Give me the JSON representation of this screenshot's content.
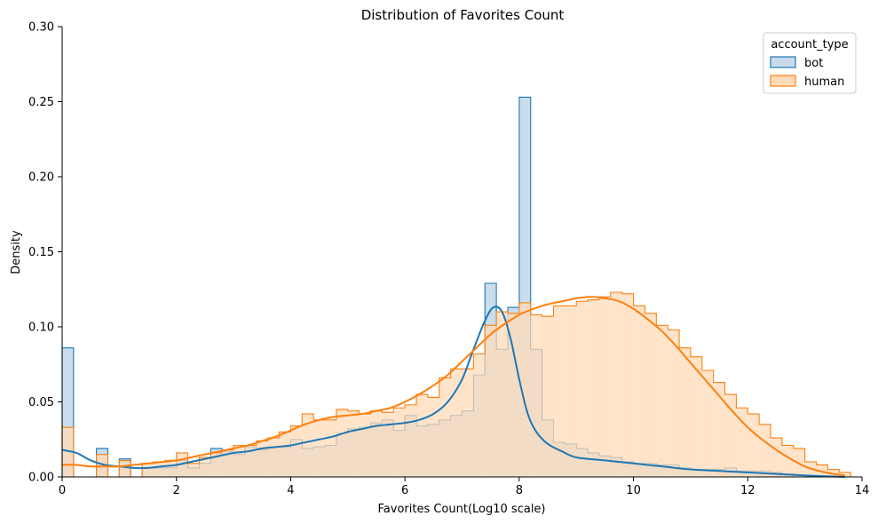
{
  "chart_data": {
    "type": "histogram",
    "title": "Distribution of Favorites Count",
    "xlabel": "Favorites Count(Log10 scale)",
    "ylabel": "Density",
    "xlim": [
      0,
      14
    ],
    "ylim": [
      0,
      0.3
    ],
    "xticks": [
      "0",
      "2",
      "4",
      "6",
      "8",
      "10",
      "12",
      "14"
    ],
    "xtick_values": [
      0,
      2,
      4,
      6,
      8,
      10,
      12,
      14
    ],
    "yticks": [
      "0.00",
      "0.05",
      "0.10",
      "0.15",
      "0.20",
      "0.25",
      "0.30"
    ],
    "ytick_values": [
      0,
      0.05,
      0.1,
      0.15,
      0.2,
      0.25,
      0.3
    ],
    "grid": false,
    "legend": {
      "title": "account_type",
      "position": "top-right"
    },
    "series": [
      {
        "name": "bot",
        "color": "#1f77b4",
        "fill": "#c6dbeb",
        "bins": [
          [
            0.0,
            0.2,
            0.086
          ],
          [
            0.2,
            0.4,
            0.0
          ],
          [
            0.4,
            0.6,
            0.0
          ],
          [
            0.6,
            0.8,
            0.019
          ],
          [
            0.8,
            1.0,
            0.0
          ],
          [
            1.0,
            1.2,
            0.012
          ],
          [
            1.2,
            1.4,
            0.0
          ],
          [
            1.4,
            1.6,
            0.006
          ],
          [
            1.6,
            1.8,
            0.006
          ],
          [
            1.8,
            2.0,
            0.006
          ],
          [
            2.0,
            2.2,
            0.011
          ],
          [
            2.2,
            2.4,
            0.006
          ],
          [
            2.4,
            2.6,
            0.009
          ],
          [
            2.6,
            2.8,
            0.019
          ],
          [
            2.8,
            3.0,
            0.017
          ],
          [
            3.0,
            3.2,
            0.015
          ],
          [
            3.2,
            3.4,
            0.02
          ],
          [
            3.4,
            3.6,
            0.018
          ],
          [
            3.6,
            3.8,
            0.02
          ],
          [
            3.8,
            4.0,
            0.02
          ],
          [
            4.0,
            4.2,
            0.025
          ],
          [
            4.2,
            4.4,
            0.019
          ],
          [
            4.4,
            4.6,
            0.02
          ],
          [
            4.6,
            4.8,
            0.021
          ],
          [
            4.8,
            5.0,
            0.029
          ],
          [
            5.0,
            5.2,
            0.032
          ],
          [
            5.2,
            5.4,
            0.033
          ],
          [
            5.4,
            5.6,
            0.036
          ],
          [
            5.6,
            5.8,
            0.038
          ],
          [
            5.8,
            6.0,
            0.031
          ],
          [
            6.0,
            6.2,
            0.041
          ],
          [
            6.2,
            6.4,
            0.034
          ],
          [
            6.4,
            6.6,
            0.035
          ],
          [
            6.6,
            6.8,
            0.038
          ],
          [
            6.8,
            7.0,
            0.041
          ],
          [
            7.0,
            7.2,
            0.044
          ],
          [
            7.2,
            7.4,
            0.068
          ],
          [
            7.4,
            7.6,
            0.129
          ],
          [
            7.6,
            7.8,
            0.085
          ],
          [
            7.8,
            8.0,
            0.113
          ],
          [
            8.0,
            8.2,
            0.253
          ],
          [
            8.2,
            8.4,
            0.085
          ],
          [
            8.4,
            8.6,
            0.038
          ],
          [
            8.6,
            8.8,
            0.023
          ],
          [
            8.8,
            9.0,
            0.022
          ],
          [
            9.0,
            9.2,
            0.019
          ],
          [
            9.2,
            9.4,
            0.016
          ],
          [
            9.4,
            9.6,
            0.014
          ],
          [
            9.6,
            9.8,
            0.013
          ],
          [
            9.8,
            10.0,
            0.01
          ],
          [
            10.0,
            10.2,
            0.009
          ],
          [
            10.2,
            10.4,
            0.009
          ],
          [
            10.4,
            10.6,
            0.008
          ],
          [
            10.6,
            10.8,
            0.008
          ],
          [
            10.8,
            11.0,
            0.006
          ],
          [
            11.0,
            11.2,
            0.005
          ],
          [
            11.2,
            11.4,
            0.005
          ],
          [
            11.4,
            11.6,
            0.005
          ],
          [
            11.6,
            11.8,
            0.006
          ],
          [
            11.8,
            12.0,
            0.004
          ],
          [
            12.0,
            12.2,
            0.004
          ],
          [
            12.2,
            12.4,
            0.004
          ],
          [
            12.4,
            12.6,
            0.003
          ],
          [
            12.6,
            12.8,
            0.002
          ]
        ],
        "kde": [
          [
            0.0,
            0.018
          ],
          [
            0.25,
            0.016
          ],
          [
            0.5,
            0.011
          ],
          [
            0.75,
            0.008
          ],
          [
            1.0,
            0.007
          ],
          [
            1.25,
            0.006
          ],
          [
            1.5,
            0.006
          ],
          [
            1.75,
            0.007
          ],
          [
            2.0,
            0.008
          ],
          [
            2.25,
            0.01
          ],
          [
            2.5,
            0.012
          ],
          [
            2.75,
            0.014
          ],
          [
            3.0,
            0.016
          ],
          [
            3.25,
            0.017
          ],
          [
            3.5,
            0.019
          ],
          [
            3.75,
            0.02
          ],
          [
            4.0,
            0.021
          ],
          [
            4.25,
            0.023
          ],
          [
            4.5,
            0.025
          ],
          [
            4.75,
            0.027
          ],
          [
            5.0,
            0.03
          ],
          [
            5.25,
            0.032
          ],
          [
            5.5,
            0.034
          ],
          [
            5.75,
            0.035
          ],
          [
            6.0,
            0.036
          ],
          [
            6.25,
            0.038
          ],
          [
            6.5,
            0.042
          ],
          [
            6.75,
            0.05
          ],
          [
            7.0,
            0.065
          ],
          [
            7.2,
            0.085
          ],
          [
            7.4,
            0.104
          ],
          [
            7.55,
            0.113
          ],
          [
            7.7,
            0.11
          ],
          [
            7.85,
            0.092
          ],
          [
            8.0,
            0.065
          ],
          [
            8.15,
            0.042
          ],
          [
            8.3,
            0.03
          ],
          [
            8.5,
            0.022
          ],
          [
            8.75,
            0.017
          ],
          [
            9.0,
            0.013
          ],
          [
            9.5,
            0.011
          ],
          [
            10.0,
            0.009
          ],
          [
            10.5,
            0.007
          ],
          [
            11.0,
            0.005
          ],
          [
            11.5,
            0.004
          ],
          [
            12.0,
            0.003
          ],
          [
            12.5,
            0.002
          ],
          [
            13.0,
            0.001
          ],
          [
            13.7,
            0.0
          ]
        ]
      },
      {
        "name": "human",
        "color": "#ff7f0e",
        "fill": "#ffdbb8",
        "bins": [
          [
            0.0,
            0.2,
            0.033
          ],
          [
            0.2,
            0.4,
            0.0
          ],
          [
            0.4,
            0.6,
            0.0
          ],
          [
            0.6,
            0.8,
            0.015
          ],
          [
            0.8,
            1.0,
            0.0
          ],
          [
            1.0,
            1.2,
            0.011
          ],
          [
            1.2,
            1.4,
            0.0
          ],
          [
            1.4,
            1.6,
            0.009
          ],
          [
            1.6,
            1.8,
            0.01
          ],
          [
            1.8,
            2.0,
            0.011
          ],
          [
            2.0,
            2.2,
            0.016
          ],
          [
            2.2,
            2.4,
            0.009
          ],
          [
            2.4,
            2.6,
            0.013
          ],
          [
            2.6,
            2.8,
            0.016
          ],
          [
            2.8,
            3.0,
            0.018
          ],
          [
            3.0,
            3.2,
            0.021
          ],
          [
            3.2,
            3.4,
            0.021
          ],
          [
            3.4,
            3.6,
            0.024
          ],
          [
            3.6,
            3.8,
            0.026
          ],
          [
            3.8,
            4.0,
            0.03
          ],
          [
            4.0,
            4.2,
            0.034
          ],
          [
            4.2,
            4.4,
            0.042
          ],
          [
            4.4,
            4.6,
            0.038
          ],
          [
            4.6,
            4.8,
            0.038
          ],
          [
            4.8,
            5.0,
            0.045
          ],
          [
            5.0,
            5.2,
            0.044
          ],
          [
            5.2,
            5.4,
            0.042
          ],
          [
            5.4,
            5.6,
            0.044
          ],
          [
            5.6,
            5.8,
            0.043
          ],
          [
            5.8,
            6.0,
            0.046
          ],
          [
            6.0,
            6.2,
            0.048
          ],
          [
            6.2,
            6.4,
            0.055
          ],
          [
            6.4,
            6.6,
            0.053
          ],
          [
            6.6,
            6.8,
            0.066
          ],
          [
            6.8,
            7.0,
            0.072
          ],
          [
            7.0,
            7.2,
            0.072
          ],
          [
            7.2,
            7.4,
            0.082
          ],
          [
            7.4,
            7.6,
            0.101
          ],
          [
            7.6,
            7.8,
            0.11
          ],
          [
            7.8,
            8.0,
            0.109
          ],
          [
            8.0,
            8.2,
            0.116
          ],
          [
            8.2,
            8.4,
            0.108
          ],
          [
            8.4,
            8.6,
            0.107
          ],
          [
            8.6,
            8.8,
            0.114
          ],
          [
            8.8,
            9.0,
            0.114
          ],
          [
            9.0,
            9.2,
            0.117
          ],
          [
            9.2,
            9.4,
            0.118
          ],
          [
            9.4,
            9.6,
            0.12
          ],
          [
            9.6,
            9.8,
            0.123
          ],
          [
            9.8,
            10.0,
            0.122
          ],
          [
            10.0,
            10.2,
            0.114
          ],
          [
            10.2,
            10.4,
            0.109
          ],
          [
            10.4,
            10.6,
            0.101
          ],
          [
            10.6,
            10.8,
            0.098
          ],
          [
            10.8,
            11.0,
            0.086
          ],
          [
            11.0,
            11.2,
            0.08
          ],
          [
            11.2,
            11.4,
            0.071
          ],
          [
            11.4,
            11.6,
            0.063
          ],
          [
            11.6,
            11.8,
            0.055
          ],
          [
            11.8,
            12.0,
            0.046
          ],
          [
            12.0,
            12.2,
            0.042
          ],
          [
            12.2,
            12.4,
            0.035
          ],
          [
            12.4,
            12.6,
            0.026
          ],
          [
            12.6,
            12.8,
            0.021
          ],
          [
            12.8,
            13.0,
            0.019
          ],
          [
            13.0,
            13.2,
            0.01
          ],
          [
            13.2,
            13.4,
            0.008
          ],
          [
            13.4,
            13.6,
            0.005
          ],
          [
            13.6,
            13.8,
            0.003
          ]
        ],
        "kde": [
          [
            0.0,
            0.008
          ],
          [
            0.25,
            0.008
          ],
          [
            0.5,
            0.007
          ],
          [
            0.75,
            0.007
          ],
          [
            1.0,
            0.007
          ],
          [
            1.25,
            0.008
          ],
          [
            1.5,
            0.009
          ],
          [
            1.75,
            0.01
          ],
          [
            2.0,
            0.011
          ],
          [
            2.25,
            0.013
          ],
          [
            2.5,
            0.015
          ],
          [
            2.75,
            0.017
          ],
          [
            3.0,
            0.019
          ],
          [
            3.25,
            0.021
          ],
          [
            3.5,
            0.024
          ],
          [
            3.75,
            0.027
          ],
          [
            4.0,
            0.031
          ],
          [
            4.25,
            0.035
          ],
          [
            4.5,
            0.038
          ],
          [
            4.75,
            0.04
          ],
          [
            5.0,
            0.041
          ],
          [
            5.25,
            0.042
          ],
          [
            5.5,
            0.044
          ],
          [
            5.75,
            0.046
          ],
          [
            6.0,
            0.05
          ],
          [
            6.25,
            0.055
          ],
          [
            6.5,
            0.061
          ],
          [
            6.75,
            0.068
          ],
          [
            7.0,
            0.077
          ],
          [
            7.25,
            0.086
          ],
          [
            7.5,
            0.095
          ],
          [
            7.75,
            0.102
          ],
          [
            8.0,
            0.108
          ],
          [
            8.25,
            0.112
          ],
          [
            8.5,
            0.115
          ],
          [
            8.75,
            0.117
          ],
          [
            9.0,
            0.119
          ],
          [
            9.25,
            0.12
          ],
          [
            9.5,
            0.119
          ],
          [
            9.75,
            0.117
          ],
          [
            10.0,
            0.112
          ],
          [
            10.25,
            0.105
          ],
          [
            10.5,
            0.097
          ],
          [
            10.75,
            0.087
          ],
          [
            11.0,
            0.076
          ],
          [
            11.25,
            0.065
          ],
          [
            11.5,
            0.054
          ],
          [
            11.75,
            0.043
          ],
          [
            12.0,
            0.033
          ],
          [
            12.25,
            0.025
          ],
          [
            12.5,
            0.018
          ],
          [
            12.75,
            0.012
          ],
          [
            13.0,
            0.007
          ],
          [
            13.25,
            0.004
          ],
          [
            13.5,
            0.002
          ],
          [
            13.7,
            0.001
          ]
        ]
      }
    ]
  }
}
